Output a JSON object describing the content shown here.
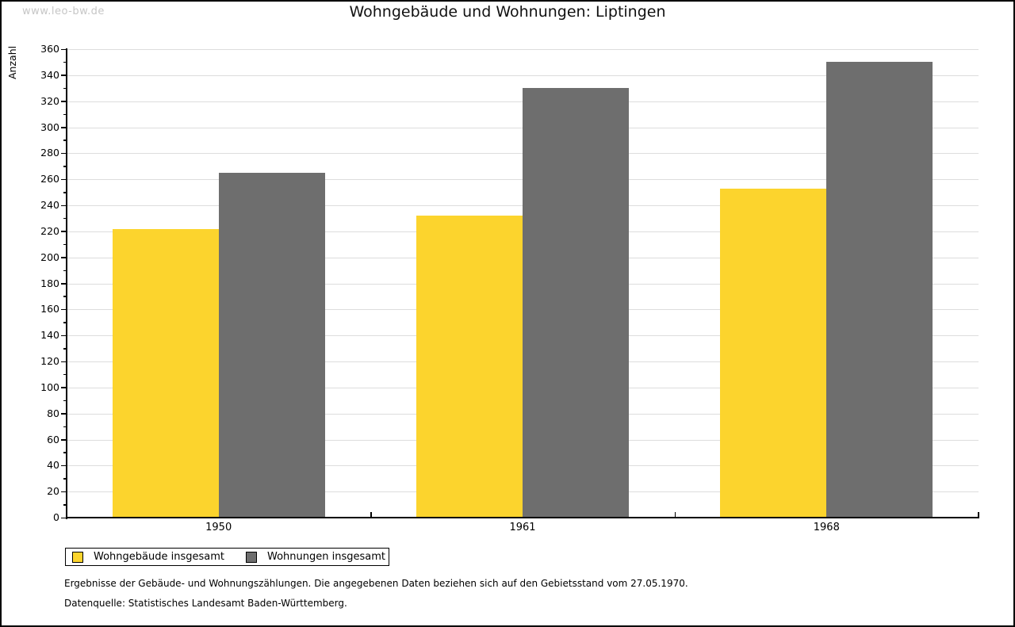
{
  "watermark": "www.leo-bw.de",
  "title": "Wohngebäude und Wohnungen: Liptingen",
  "chart_data": {
    "type": "bar",
    "title": "Wohngebäude und Wohnungen: Liptingen",
    "categories": [
      "1950",
      "1961",
      "1968"
    ],
    "series": [
      {
        "name": "Wohngebäude insgesamt",
        "color": "#FCD42D",
        "values": [
          222,
          232,
          253
        ]
      },
      {
        "name": "Wohnungen insgesamt",
        "color": "#6E6E6E",
        "values": [
          265,
          330,
          350
        ]
      }
    ],
    "xlabel": "",
    "ylabel": "Anzahl",
    "ylim": [
      0,
      360
    ],
    "ytick_step": 20,
    "y_minor_tick_step": 10,
    "grid": true,
    "gridline_color": "#DDDDDD",
    "legend_position": "bottom-left"
  },
  "footer": {
    "line1": "Ergebnisse der Gebäude- und Wohnungszählungen. Die angegebenen Daten beziehen sich auf den Gebietsstand vom 27.05.1970.",
    "line2": "Datenquelle: Statistisches Landesamt Baden-Württemberg."
  }
}
